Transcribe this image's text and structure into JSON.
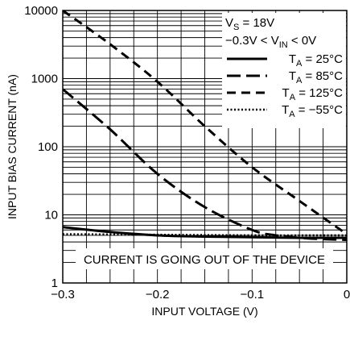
{
  "chart_data": {
    "type": "line",
    "xlabel": "INPUT VOLTAGE (V)",
    "ylabel": "INPUT BIAS CURRENT (nA)",
    "xlim": [
      -0.3,
      0
    ],
    "ylim": [
      1,
      10000
    ],
    "yscale": "log",
    "grid": true,
    "x_ticks": [
      -0.3,
      -0.2,
      -0.1,
      0
    ],
    "x_tick_labels": [
      "−0.3",
      "−0.2",
      "−0.1",
      "0"
    ],
    "y_ticks": [
      1,
      10,
      100,
      1000,
      10000
    ],
    "y_tick_labels": [
      "1",
      "10",
      "100",
      "1000",
      "10000"
    ],
    "legend_position": "top-right",
    "conditions": {
      "vs": {
        "prefix": "V",
        "sub": "S",
        "suffix": " = 18V"
      },
      "vin": {
        "prefix": "−0.3V < V",
        "sub": "IN",
        "suffix": " < 0V"
      }
    },
    "annotation": "CURRENT IS GOING OUT OF THE DEVICE",
    "series": [
      {
        "name": "T = 25°C",
        "label": {
          "prefix": "T",
          "sub": "A",
          "suffix": " = 25°C"
        },
        "style": "solid",
        "x": [
          -0.3,
          -0.25,
          -0.2,
          -0.15,
          -0.1,
          -0.05,
          0
        ],
        "y": [
          6.6,
          5.6,
          5.0,
          4.8,
          4.7,
          4.6,
          4.6
        ]
      },
      {
        "name": "T = 85°C",
        "label": {
          "prefix": "T",
          "sub": "A",
          "suffix": " = 85°C"
        },
        "style": "long-dash",
        "x": [
          -0.3,
          -0.25,
          -0.2,
          -0.15,
          -0.1,
          -0.075,
          -0.05,
          -0.025,
          0
        ],
        "y": [
          700,
          180,
          40,
          13,
          6,
          5,
          4.6,
          4.4,
          4.3
        ]
      },
      {
        "name": "T = 125°C",
        "label": {
          "prefix": "T",
          "sub": "A",
          "suffix": " = 125°C"
        },
        "style": "dash",
        "x": [
          -0.3,
          -0.25,
          -0.2,
          -0.15,
          -0.1,
          -0.05,
          0
        ],
        "y": [
          10000,
          3200,
          900,
          200,
          50,
          16,
          5.2
        ]
      },
      {
        "name": "T = −55°C",
        "label": {
          "prefix": "T",
          "sub": "A",
          "suffix": " = −55°C"
        },
        "style": "dotted",
        "x": [
          -0.3,
          -0.2,
          -0.1,
          0
        ],
        "y": [
          5.2,
          5.1,
          5.0,
          5.0
        ]
      }
    ]
  }
}
